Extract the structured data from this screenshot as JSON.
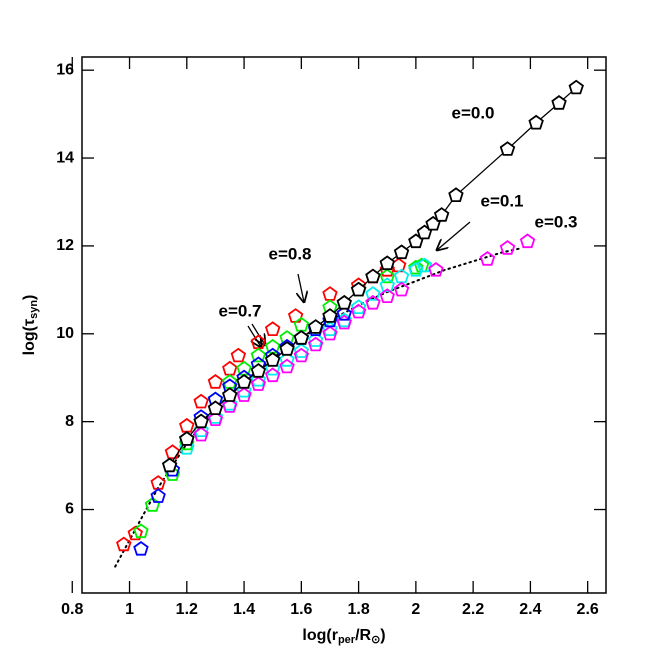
{
  "chart_data": {
    "type": "scatter",
    "x_label": [
      "log(r",
      "per",
      "/R",
      "⊙",
      ")"
    ],
    "y_label": [
      "log(τ",
      "syn",
      ")"
    ],
    "annotations": [
      "e=0.0",
      "e=0.1",
      "e=0.3",
      "e=0.8",
      "e=0.7"
    ],
    "xlim": [
      0.834,
      2.664
    ],
    "ylim": [
      4.1,
      16.3
    ],
    "xticks": [
      {
        "value": 0.8,
        "label": "0.8"
      },
      1,
      1.2,
      1.4,
      1.6,
      1.8,
      {
        "value": 2,
        "label": "2"
      },
      2.2,
      2.4,
      2.6
    ],
    "yticks": [
      6,
      8,
      10,
      12,
      14,
      16
    ],
    "series": [
      {
        "color": "#000000",
        "style": "dotted",
        "x": [
          0.95,
          1.0,
          1.05,
          1.1,
          1.2,
          1.3,
          1.4,
          1.5,
          1.6,
          1.7,
          1.8,
          1.9,
          2.0,
          2.1,
          2.2,
          2.3,
          2.37
        ],
        "values": [
          4.7,
          5.3,
          5.9,
          6.5,
          7.5,
          8.3,
          8.9,
          9.45,
          9.9,
          10.3,
          10.65,
          10.95,
          11.2,
          11.45,
          11.65,
          11.85,
          11.95
        ]
      },
      {
        "color": "#ff0000",
        "style": "markers",
        "x": [
          0.98,
          1.02,
          1.1,
          1.15,
          1.2,
          1.25,
          1.3,
          1.35,
          1.38,
          1.45,
          1.5,
          1.58,
          1.7,
          1.8,
          1.85,
          1.9,
          1.94
        ],
        "values": [
          5.2,
          5.45,
          6.6,
          7.3,
          7.9,
          8.45,
          8.9,
          9.2,
          9.5,
          9.8,
          10.1,
          10.4,
          10.9,
          11.1,
          11.3,
          11.45,
          11.55
        ]
      },
      {
        "color": "#00ee00",
        "style": "markers",
        "x": [
          1.04,
          1.08,
          1.15,
          1.2,
          1.25,
          1.3,
          1.35,
          1.4,
          1.45,
          1.5,
          1.55,
          1.6,
          1.7,
          1.8,
          1.9,
          2.0,
          2.02
        ],
        "values": [
          5.5,
          6.1,
          6.8,
          7.5,
          8.0,
          8.5,
          8.9,
          9.2,
          9.5,
          9.7,
          9.9,
          10.2,
          10.6,
          11.0,
          11.3,
          11.5,
          11.55
        ]
      },
      {
        "color": "#00eeee",
        "style": "markers",
        "x": [
          1.2,
          1.25,
          1.3,
          1.35,
          1.4,
          1.45,
          1.5,
          1.55,
          1.6,
          1.65,
          1.7,
          1.75,
          1.8,
          1.85,
          1.9,
          1.95,
          2.0,
          2.03
        ],
        "values": [
          7.4,
          7.8,
          8.1,
          8.4,
          8.7,
          8.95,
          9.2,
          9.4,
          9.6,
          9.85,
          10.1,
          10.3,
          10.6,
          10.9,
          11.1,
          11.3,
          11.45,
          11.55
        ]
      },
      {
        "color": "#ff00ff",
        "style": "markers",
        "x": [
          1.25,
          1.3,
          1.35,
          1.4,
          1.45,
          1.5,
          1.55,
          1.6,
          1.65,
          1.7,
          1.75,
          1.8,
          1.85,
          1.9,
          1.95,
          2.07,
          2.25,
          2.32,
          2.39
        ],
        "values": [
          7.7,
          8.05,
          8.35,
          8.6,
          8.85,
          9.05,
          9.25,
          9.5,
          9.75,
          10.0,
          10.25,
          10.5,
          10.7,
          10.85,
          11.0,
          11.45,
          11.7,
          11.95,
          12.1
        ]
      },
      {
        "color": "#0000ff",
        "style": "markers",
        "x": [
          1.04,
          1.1,
          1.15,
          1.2,
          1.25,
          1.3,
          1.35,
          1.4,
          1.45,
          1.5,
          1.55,
          1.6,
          1.65,
          1.7,
          1.75
        ],
        "values": [
          5.1,
          6.3,
          6.9,
          7.6,
          8.1,
          8.5,
          8.8,
          9.0,
          9.3,
          9.5,
          9.7,
          9.9,
          10.1,
          10.3,
          10.45
        ]
      },
      {
        "color": "#000000",
        "style": "line+markers",
        "x": [
          1.14,
          1.2,
          1.25,
          1.3,
          1.35,
          1.4,
          1.45,
          1.5,
          1.55,
          1.6,
          1.65,
          1.7,
          1.75,
          1.8,
          1.85,
          1.9,
          1.95,
          2.0,
          2.03,
          2.06,
          2.09,
          2.14,
          2.32,
          2.42,
          2.5,
          2.56
        ],
        "values": [
          7.0,
          7.6,
          8.0,
          8.3,
          8.6,
          8.9,
          9.15,
          9.4,
          9.65,
          9.9,
          10.15,
          10.4,
          10.7,
          11.0,
          11.3,
          11.6,
          11.85,
          12.1,
          12.3,
          12.5,
          12.7,
          13.15,
          14.2,
          14.8,
          15.25,
          15.6
        ]
      }
    ]
  }
}
